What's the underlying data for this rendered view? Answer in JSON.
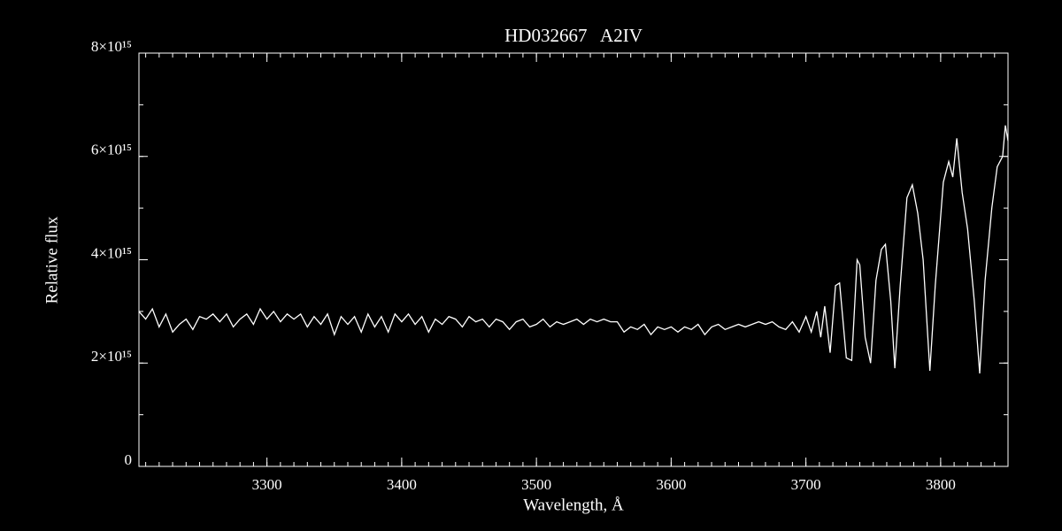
{
  "chart_data": {
    "type": "line",
    "title": "HD032667   A2IV",
    "xlabel": "Wavelength, Å",
    "ylabel": "Relative flux",
    "color": "#ffffff",
    "background": "#000000",
    "xlim": [
      3205,
      3850
    ],
    "ylim": [
      0,
      8000000000000000.0
    ],
    "xticks": [
      3300,
      3400,
      3500,
      3600,
      3700,
      3800
    ],
    "yticks": [
      0,
      {
        "value": 2000000000000000.0,
        "label": "2×10¹⁵"
      },
      {
        "value": 4000000000000000.0,
        "label": "4×10¹⁵"
      },
      {
        "value": 6000000000000000.0,
        "label": "6×10¹⁵"
      },
      {
        "value": 8000000000000000.0,
        "label": "8×10¹⁵"
      }
    ],
    "xminor_step": 10,
    "yminor_step": 1000000000000000.0,
    "x": [
      3205,
      3210,
      3215,
      3220,
      3225,
      3230,
      3235,
      3240,
      3245,
      3250,
      3255,
      3260,
      3265,
      3270,
      3275,
      3280,
      3285,
      3290,
      3295,
      3300,
      3305,
      3310,
      3315,
      3320,
      3325,
      3330,
      3335,
      3340,
      3345,
      3350,
      3355,
      3360,
      3365,
      3370,
      3375,
      3380,
      3385,
      3390,
      3395,
      3400,
      3405,
      3410,
      3415,
      3420,
      3425,
      3430,
      3435,
      3440,
      3445,
      3450,
      3455,
      3460,
      3465,
      3470,
      3475,
      3480,
      3485,
      3490,
      3495,
      3500,
      3505,
      3510,
      3515,
      3520,
      3525,
      3530,
      3535,
      3540,
      3545,
      3550,
      3555,
      3560,
      3565,
      3570,
      3575,
      3580,
      3585,
      3590,
      3595,
      3600,
      3605,
      3610,
      3615,
      3620,
      3625,
      3630,
      3635,
      3640,
      3645,
      3650,
      3655,
      3660,
      3665,
      3670,
      3675,
      3680,
      3685,
      3690,
      3695,
      3700,
      3704,
      3708,
      3711,
      3714,
      3718,
      3722,
      3725,
      3730,
      3734,
      3738,
      3740,
      3744,
      3748,
      3752,
      3756,
      3759,
      3763,
      3766,
      3770,
      3775,
      3779,
      3783,
      3787,
      3792,
      3796,
      3802,
      3806,
      3809,
      3812,
      3816,
      3820,
      3825,
      3829,
      3833,
      3838,
      3842,
      3846,
      3848,
      3850
    ],
    "values": [
      3000000000000000.0,
      2850000000000000.0,
      3050000000000000.0,
      2700000000000000.0,
      2950000000000000.0,
      2600000000000000.0,
      2750000000000000.0,
      2850000000000000.0,
      2650000000000000.0,
      2900000000000000.0,
      2850000000000000.0,
      2950000000000000.0,
      2800000000000000.0,
      2950000000000000.0,
      2700000000000000.0,
      2850000000000000.0,
      2950000000000000.0,
      2750000000000000.0,
      3050000000000000.0,
      2850000000000000.0,
      3000000000000000.0,
      2800000000000000.0,
      2950000000000000.0,
      2850000000000000.0,
      2950000000000000.0,
      2700000000000000.0,
      2900000000000000.0,
      2750000000000000.0,
      2950000000000000.0,
      2550000000000000.0,
      2900000000000000.0,
      2750000000000000.0,
      2900000000000000.0,
      2600000000000000.0,
      2950000000000000.0,
      2700000000000000.0,
      2900000000000000.0,
      2600000000000000.0,
      2950000000000000.0,
      2800000000000000.0,
      2950000000000000.0,
      2750000000000000.0,
      2900000000000000.0,
      2600000000000000.0,
      2850000000000000.0,
      2750000000000000.0,
      2900000000000000.0,
      2850000000000000.0,
      2700000000000000.0,
      2900000000000000.0,
      2800000000000000.0,
      2850000000000000.0,
      2700000000000000.0,
      2850000000000000.0,
      2800000000000000.0,
      2650000000000000.0,
      2800000000000000.0,
      2850000000000000.0,
      2700000000000000.0,
      2750000000000000.0,
      2850000000000000.0,
      2700000000000000.0,
      2800000000000000.0,
      2750000000000000.0,
      2800000000000000.0,
      2850000000000000.0,
      2750000000000000.0,
      2850000000000000.0,
      2800000000000000.0,
      2850000000000000.0,
      2800000000000000.0,
      2800000000000000.0,
      2600000000000000.0,
      2700000000000000.0,
      2650000000000000.0,
      2750000000000000.0,
      2550000000000000.0,
      2700000000000000.0,
      2650000000000000.0,
      2700000000000000.0,
      2600000000000000.0,
      2700000000000000.0,
      2650000000000000.0,
      2750000000000000.0,
      2550000000000000.0,
      2700000000000000.0,
      2750000000000000.0,
      2650000000000000.0,
      2700000000000000.0,
      2750000000000000.0,
      2700000000000000.0,
      2750000000000000.0,
      2800000000000000.0,
      2750000000000000.0,
      2800000000000000.0,
      2700000000000000.0,
      2650000000000000.0,
      2800000000000000.0,
      2600000000000000.0,
      2900000000000000.0,
      2600000000000000.0,
      3000000000000000.0,
      2500000000000000.0,
      3100000000000000.0,
      2200000000000000.0,
      3500000000000000.0,
      3550000000000000.0,
      2100000000000000.0,
      2050000000000000.0,
      4000000000000000.0,
      3900000000000000.0,
      2500000000000000.0,
      2000000000000000.0,
      3600000000000000.0,
      4200000000000000.0,
      4300000000000000.0,
      3200000000000000.0,
      1900000000000000.0,
      3500000000000000.0,
      5200000000000000.0,
      5450000000000000.0,
      4900000000000000.0,
      4000000000000000.0,
      1850000000000000.0,
      3500000000000000.0,
      5500000000000000.0,
      5900000000000000.0,
      5600000000000000.0,
      6350000000000000.0,
      5300000000000000.0,
      4600000000000000.0,
      3200000000000000.0,
      1800000000000000.0,
      3600000000000000.0,
      5000000000000000.0,
      5800000000000000.0,
      6000000000000000.0,
      6600000000000000.0,
      6300000000000000.0
    ]
  }
}
